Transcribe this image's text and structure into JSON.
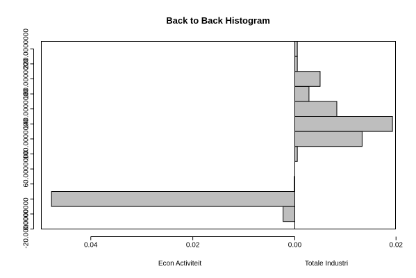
{
  "chart_data": {
    "type": "bar",
    "title": "Back to Back Histogram",
    "y_ticks": [
      "-20.0000000",
      "0.0000000",
      "60.0000000",
      "100.0000000",
      "140.0000000",
      "180.0000000",
      "220.0000000"
    ],
    "y_tick_values": [
      -20,
      0,
      60,
      100,
      140,
      180,
      220
    ],
    "ylim": [
      -20,
      230
    ],
    "bin_edges": [
      -10,
      10,
      30,
      50,
      70,
      90,
      110,
      130,
      150,
      170,
      190,
      210,
      230
    ],
    "left": {
      "name": "Econ Activiteit",
      "xlabel": "Econ Activiteit",
      "x_ticks": [
        "0.04",
        "0.02",
        "0.00"
      ],
      "x_tick_values": [
        0.04,
        0.02,
        0.0
      ],
      "xlim": [
        0.0,
        0.0497
      ],
      "values": [
        0.0023,
        0.0477,
        0.0001,
        0,
        0,
        0,
        0,
        0,
        0,
        0,
        0,
        0
      ]
    },
    "right": {
      "name": "Totale Industri",
      "xlabel": "Totale Industri",
      "x_ticks": [
        "0.00",
        "0.02"
      ],
      "x_tick_values": [
        0.0,
        0.02
      ],
      "xlim": [
        0.0,
        0.0199
      ],
      "values": [
        0,
        0,
        0,
        0,
        0.0005,
        0.0133,
        0.0193,
        0.0083,
        0.0028,
        0.005,
        0.0005,
        0.0005
      ]
    },
    "bar_color": "#bebebe",
    "grid": false
  }
}
